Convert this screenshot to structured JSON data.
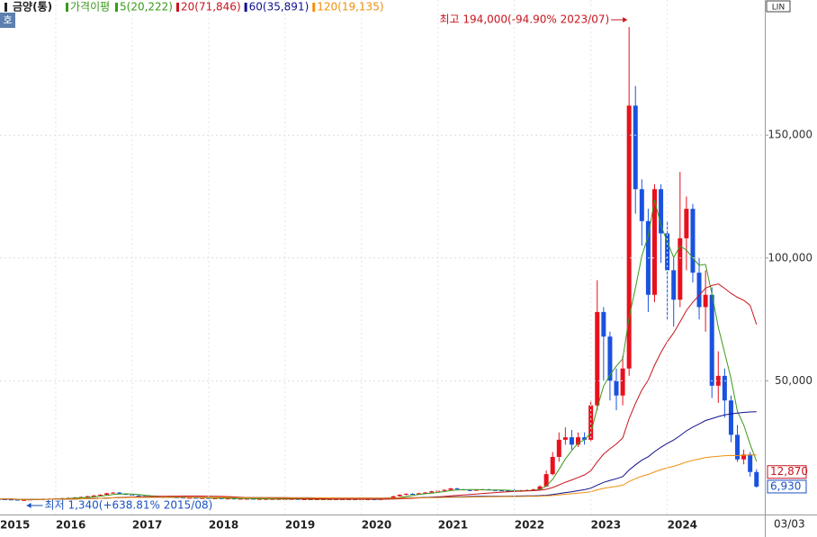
{
  "chart_data": {
    "type": "candlestick",
    "stock_name": "금양(통)",
    "ma_label": "가격이평",
    "moving_averages": [
      {
        "name": "5(20,222)",
        "period": 5,
        "color": "#3a9a1a"
      },
      {
        "name": "20(71,846)",
        "period": 20,
        "color": "#c8141e"
      },
      {
        "name": "60(35,891)",
        "period": 60,
        "color": "#10108c"
      },
      {
        "name": "120(19,135)",
        "period": 120,
        "color": "#f09010"
      }
    ],
    "up_color": "#e8101c",
    "down_color": "#1a52e0",
    "categories": [
      "2015",
      null,
      null,
      null,
      null,
      null,
      null,
      null,
      null,
      null,
      null,
      null,
      "2016",
      null,
      null,
      null,
      null,
      null,
      null,
      null,
      null,
      null,
      null,
      null,
      "2017",
      null,
      null,
      null,
      null,
      null,
      null,
      null,
      null,
      null,
      null,
      null,
      "2018",
      null,
      null,
      null,
      null,
      null,
      null,
      null,
      null,
      null,
      null,
      null,
      "2019",
      null,
      null,
      null,
      null,
      null,
      null,
      null,
      null,
      null,
      null,
      null,
      "2020",
      null,
      null,
      null,
      null,
      null,
      null,
      null,
      null,
      null,
      null,
      null,
      "2021",
      null,
      null,
      null,
      null,
      null,
      null,
      null,
      null,
      null,
      null,
      null,
      "2022",
      null,
      null,
      null,
      null,
      null,
      null,
      null,
      null,
      null,
      null,
      null,
      "2023",
      null,
      null,
      null,
      null,
      null,
      null,
      null,
      null,
      null,
      null,
      null,
      "2024",
      null,
      null,
      null,
      null,
      null,
      null,
      null,
      null,
      null,
      null,
      null,
      null,
      null,
      null
    ],
    "open": [
      2200,
      2100,
      2000,
      1900,
      1800,
      1700,
      1600,
      1500,
      1500,
      1700,
      1800,
      1900,
      2000,
      2100,
      2200,
      2300,
      2500,
      2700,
      3000,
      3300,
      3600,
      4200,
      4500,
      4000,
      3600,
      3300,
      3100,
      3000,
      2900,
      2800,
      2700,
      2600,
      2500,
      2400,
      2400,
      2300,
      2300,
      2200,
      2200,
      2100,
      2100,
      2000,
      2000,
      2000,
      1900,
      1900,
      1900,
      1900,
      1900,
      1900,
      1900,
      1800,
      1800,
      1800,
      1800,
      1800,
      1800,
      1800,
      1800,
      1800,
      1800,
      1800,
      1800,
      1500,
      1900,
      2200,
      3000,
      3600,
      4000,
      3800,
      4200,
      4500,
      5000,
      5200,
      5600,
      6200,
      5800,
      5500,
      5400,
      5600,
      5800,
      5500,
      5400,
      5300,
      5200,
      5000,
      5300,
      5500,
      5800,
      7000,
      12000,
      19000,
      26000,
      27000,
      24000,
      27000,
      26000,
      40000,
      78000,
      68000,
      50000,
      44000,
      55000,
      162000,
      128000,
      115000,
      85000,
      128000,
      110000,
      95000,
      83000,
      108000,
      120000,
      94000,
      80000,
      85000,
      48000,
      52000,
      42000,
      28000,
      18000,
      20000,
      12870
    ],
    "close": [
      2100,
      2000,
      1900,
      1800,
      1700,
      1600,
      1500,
      1500,
      1700,
      1800,
      1900,
      2000,
      2100,
      2200,
      2300,
      2500,
      2700,
      3000,
      3300,
      3600,
      4200,
      4500,
      4000,
      3600,
      3300,
      3100,
      3000,
      2900,
      2800,
      2700,
      2600,
      2500,
      2400,
      2400,
      2300,
      2300,
      2200,
      2200,
      2100,
      2100,
      2000,
      2000,
      2000,
      1900,
      1900,
      1900,
      1900,
      1900,
      1900,
      1900,
      1800,
      1800,
      1800,
      1800,
      1800,
      1800,
      1800,
      1800,
      1800,
      1800,
      1800,
      1800,
      1500,
      1900,
      2200,
      3000,
      3600,
      4000,
      3800,
      4200,
      4500,
      5000,
      5200,
      5600,
      6200,
      5800,
      5500,
      5400,
      5600,
      5800,
      5500,
      5400,
      5300,
      5200,
      5000,
      5300,
      5500,
      5800,
      7000,
      12000,
      19000,
      26000,
      27000,
      24000,
      27000,
      26000,
      40000,
      78000,
      68000,
      50000,
      44000,
      55000,
      162000,
      128000,
      115000,
      85000,
      128000,
      110000,
      95000,
      83000,
      108000,
      120000,
      94000,
      80000,
      85000,
      48000,
      52000,
      42000,
      28000,
      18000,
      20000,
      12870,
      6930
    ],
    "high": [
      2400,
      2300,
      2200,
      2100,
      2000,
      1900,
      1800,
      1700,
      1900,
      2000,
      2100,
      2200,
      2300,
      2400,
      2500,
      2700,
      2900,
      3200,
      3500,
      3800,
      4400,
      4700,
      4700,
      4200,
      3800,
      3500,
      3300,
      3200,
      3100,
      3000,
      2900,
      2800,
      2700,
      2600,
      2600,
      2500,
      2500,
      2400,
      2400,
      2300,
      2300,
      2200,
      2200,
      2200,
      2100,
      2100,
      2100,
      2100,
      2100,
      2100,
      2100,
      2000,
      2000,
      2000,
      2000,
      2000,
      2000,
      2000,
      2000,
      2000,
      2000,
      2000,
      2000,
      2100,
      2400,
      3200,
      3800,
      4200,
      4200,
      4400,
      4700,
      5200,
      5400,
      5800,
      6400,
      6400,
      6000,
      5700,
      5800,
      6000,
      6000,
      5700,
      5600,
      5500,
      6000,
      5600,
      5800,
      6100,
      7500,
      13500,
      21000,
      29000,
      31000,
      30000,
      29000,
      29000,
      42000,
      91000,
      80000,
      70000,
      55000,
      60000,
      194000,
      170000,
      132000,
      120000,
      130000,
      130000,
      115000,
      100000,
      135000,
      125000,
      122000,
      100000,
      95000,
      88000,
      62000,
      55000,
      44000,
      32000,
      22000,
      21000,
      14000
    ],
    "low": [
      2000,
      1900,
      1800,
      1700,
      1600,
      1500,
      1400,
      1340,
      1400,
      1600,
      1700,
      1800,
      1900,
      2000,
      2100,
      2200,
      2400,
      2600,
      2900,
      3200,
      3500,
      4100,
      3900,
      3500,
      3200,
      3000,
      2900,
      2800,
      2700,
      2600,
      2500,
      2400,
      2300,
      2300,
      2200,
      2200,
      2100,
      2100,
      2000,
      2000,
      1900,
      1900,
      1900,
      1800,
      1800,
      1800,
      1800,
      1800,
      1800,
      1800,
      1700,
      1700,
      1700,
      1700,
      1700,
      1700,
      1700,
      1700,
      1700,
      1700,
      1700,
      1700,
      1400,
      1400,
      1800,
      2100,
      2900,
      3500,
      3700,
      3700,
      4100,
      4400,
      4900,
      5100,
      5500,
      5700,
      5400,
      5300,
      5300,
      5500,
      5400,
      5300,
      5200,
      5100,
      4600,
      4800,
      5100,
      5300,
      5600,
      6800,
      11500,
      17000,
      24000,
      22000,
      23000,
      24000,
      25000,
      38000,
      50000,
      42000,
      38000,
      40000,
      52000,
      118000,
      105000,
      78000,
      82000,
      98000,
      75000,
      72000,
      80000,
      95000,
      90000,
      75000,
      70000,
      43000,
      41000,
      35000,
      25000,
      17000,
      16000,
      11000,
      6500
    ],
    "ylim": [
      -3700,
      205000
    ],
    "yticks": [
      {
        "value": 50000,
        "label": "50,000"
      },
      {
        "value": 100000,
        "label": "100,000"
      },
      {
        "value": 150000,
        "label": "150,000"
      }
    ],
    "grid": true,
    "annotations": [
      {
        "text": "최고 194,000(-94.90% 2023/07)",
        "value": 194000,
        "color": "#c8141e"
      },
      {
        "text": "최저 1,340(+638.81% 2015/08)",
        "value": 1340,
        "color": "#1a52c0"
      }
    ],
    "price_tags": [
      {
        "value": 12870,
        "label": "12,870",
        "color": "#c8141e"
      },
      {
        "value": 6930,
        "label": "6,930",
        "color": "#1a52c0"
      }
    ],
    "date_label": "03/03",
    "button_label": "호",
    "corner_label": "LIN"
  }
}
